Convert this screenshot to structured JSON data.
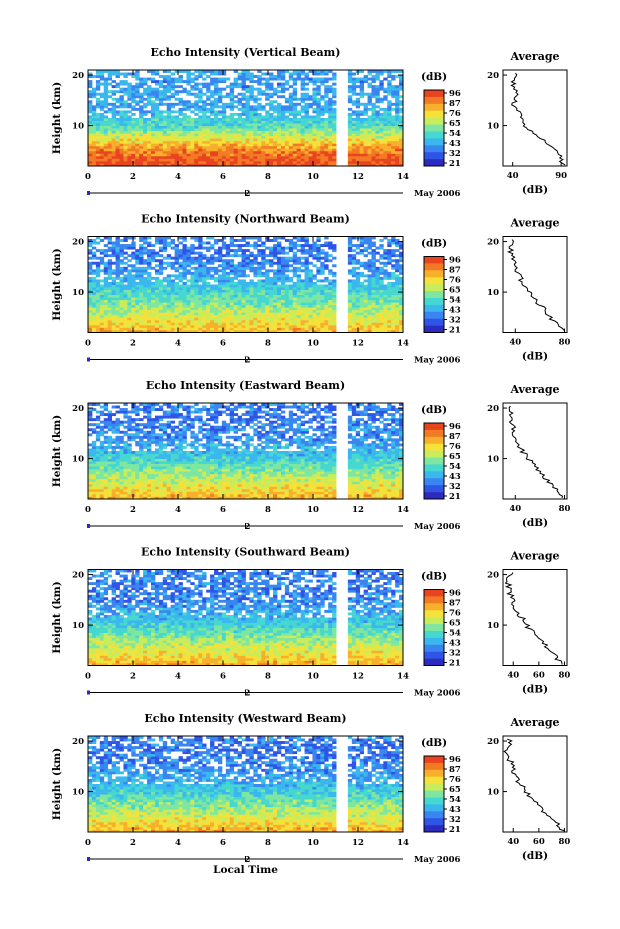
{
  "colors": {
    "scale": [
      "#2b2bbf",
      "#2f55e6",
      "#3a86f0",
      "#3ab8ee",
      "#46d8d0",
      "#7ee6a0",
      "#c8ec5c",
      "#f4e23a",
      "#f8b02c",
      "#f37a24",
      "#e84420"
    ],
    "frame": "#000000",
    "gap": "#ffffff"
  },
  "colorbar": {
    "unit_label": "(dB)",
    "ticks": [
      "96",
      "87",
      "76",
      "65",
      "54",
      "43",
      "32",
      "21"
    ]
  },
  "x_axis": {
    "ticks": [
      "0",
      "2",
      "4",
      "6",
      "8",
      "10",
      "12",
      "14"
    ],
    "date_marker": "2",
    "month_label": "May 2006",
    "bottom_label": "Local Time"
  },
  "y_axis": {
    "label": "Height (km)",
    "ticks": [
      "20",
      "10"
    ]
  },
  "average": {
    "title": "Average",
    "unit_label": "(dB)"
  },
  "chart_data": [
    {
      "type": "heatmap",
      "title": "Echo Intensity (Vertical Beam)",
      "xlabel": "",
      "ylabel": "Height (km)",
      "xlim": [
        0,
        14
      ],
      "ylim": [
        2,
        21
      ],
      "data_gap_x": [
        11.05,
        11.4
      ],
      "colorbar_range_db": [
        21,
        96
      ],
      "profile_db": [
        [
          2,
          92
        ],
        [
          4,
          89
        ],
        [
          6,
          80
        ],
        [
          8,
          66
        ],
        [
          10,
          52
        ],
        [
          12,
          48
        ],
        [
          14,
          41
        ],
        [
          16,
          44
        ],
        [
          18,
          40
        ],
        [
          20,
          42
        ]
      ],
      "average": {
        "xlabel": "(dB)",
        "x_ticks": [
          "40",
          "90"
        ],
        "xlim": [
          30,
          96
        ],
        "y_ticks": [
          "20",
          "10"
        ]
      }
    },
    {
      "type": "heatmap",
      "title": "Echo Intensity (Northward Beam)",
      "xlabel": "",
      "ylabel": "Height (km)",
      "xlim": [
        0,
        14
      ],
      "ylim": [
        2,
        21
      ],
      "data_gap_x": [
        11.05,
        11.4
      ],
      "colorbar_range_db": [
        21,
        96
      ],
      "profile_db": [
        [
          2,
          80
        ],
        [
          4,
          72
        ],
        [
          6,
          65
        ],
        [
          8,
          58
        ],
        [
          10,
          52
        ],
        [
          12,
          46
        ],
        [
          14,
          41
        ],
        [
          16,
          38
        ],
        [
          18,
          36
        ],
        [
          20,
          38
        ]
      ],
      "average": {
        "xlabel": "(dB)",
        "x_ticks": [
          "40",
          "80"
        ],
        "xlim": [
          30,
          82
        ],
        "y_ticks": [
          "20",
          "10"
        ]
      }
    },
    {
      "type": "heatmap",
      "title": "Echo Intensity (Eastward Beam)",
      "xlabel": "",
      "ylabel": "Height (km)",
      "xlim": [
        0,
        14
      ],
      "ylim": [
        2,
        21
      ],
      "data_gap_x": [
        11.05,
        11.4
      ],
      "colorbar_range_db": [
        21,
        96
      ],
      "profile_db": [
        [
          2,
          80
        ],
        [
          4,
          72
        ],
        [
          6,
          65
        ],
        [
          8,
          58
        ],
        [
          10,
          50
        ],
        [
          12,
          44
        ],
        [
          14,
          40
        ],
        [
          16,
          38
        ],
        [
          18,
          35
        ],
        [
          20,
          37
        ]
      ],
      "average": {
        "xlabel": "(dB)",
        "x_ticks": [
          "40",
          "80"
        ],
        "xlim": [
          30,
          82
        ],
        "y_ticks": [
          "20",
          "10"
        ]
      }
    },
    {
      "type": "heatmap",
      "title": "Echo Intensity (Southward Beam)",
      "xlabel": "",
      "ylabel": "Height (km)",
      "xlim": [
        0,
        14
      ],
      "ylim": [
        2,
        21
      ],
      "data_gap_x": [
        11.05,
        11.4
      ],
      "colorbar_range_db": [
        21,
        96
      ],
      "profile_db": [
        [
          2,
          80
        ],
        [
          4,
          72
        ],
        [
          6,
          66
        ],
        [
          8,
          58
        ],
        [
          10,
          50
        ],
        [
          12,
          45
        ],
        [
          14,
          40
        ],
        [
          16,
          38
        ],
        [
          18,
          36
        ],
        [
          20,
          38
        ]
      ],
      "average": {
        "xlabel": "(dB)",
        "x_ticks": [
          "40",
          "60",
          "80"
        ],
        "xlim": [
          32,
          82
        ],
        "y_ticks": [
          "20",
          "10"
        ]
      }
    },
    {
      "type": "heatmap",
      "title": "Echo Intensity (Westward Beam)",
      "xlabel": "Local Time",
      "ylabel": "Height (km)",
      "xlim": [
        0,
        14
      ],
      "ylim": [
        2,
        21
      ],
      "data_gap_x": [
        11.05,
        11.4
      ],
      "colorbar_range_db": [
        21,
        96
      ],
      "profile_db": [
        [
          2,
          80
        ],
        [
          4,
          72
        ],
        [
          6,
          64
        ],
        [
          8,
          57
        ],
        [
          10,
          50
        ],
        [
          12,
          44
        ],
        [
          14,
          40
        ],
        [
          16,
          38
        ],
        [
          18,
          35
        ],
        [
          20,
          37
        ]
      ],
      "average": {
        "xlabel": "(dB)",
        "x_ticks": [
          "40",
          "60",
          "80"
        ],
        "xlim": [
          32,
          82
        ],
        "y_ticks": [
          "20",
          "10"
        ]
      }
    }
  ]
}
